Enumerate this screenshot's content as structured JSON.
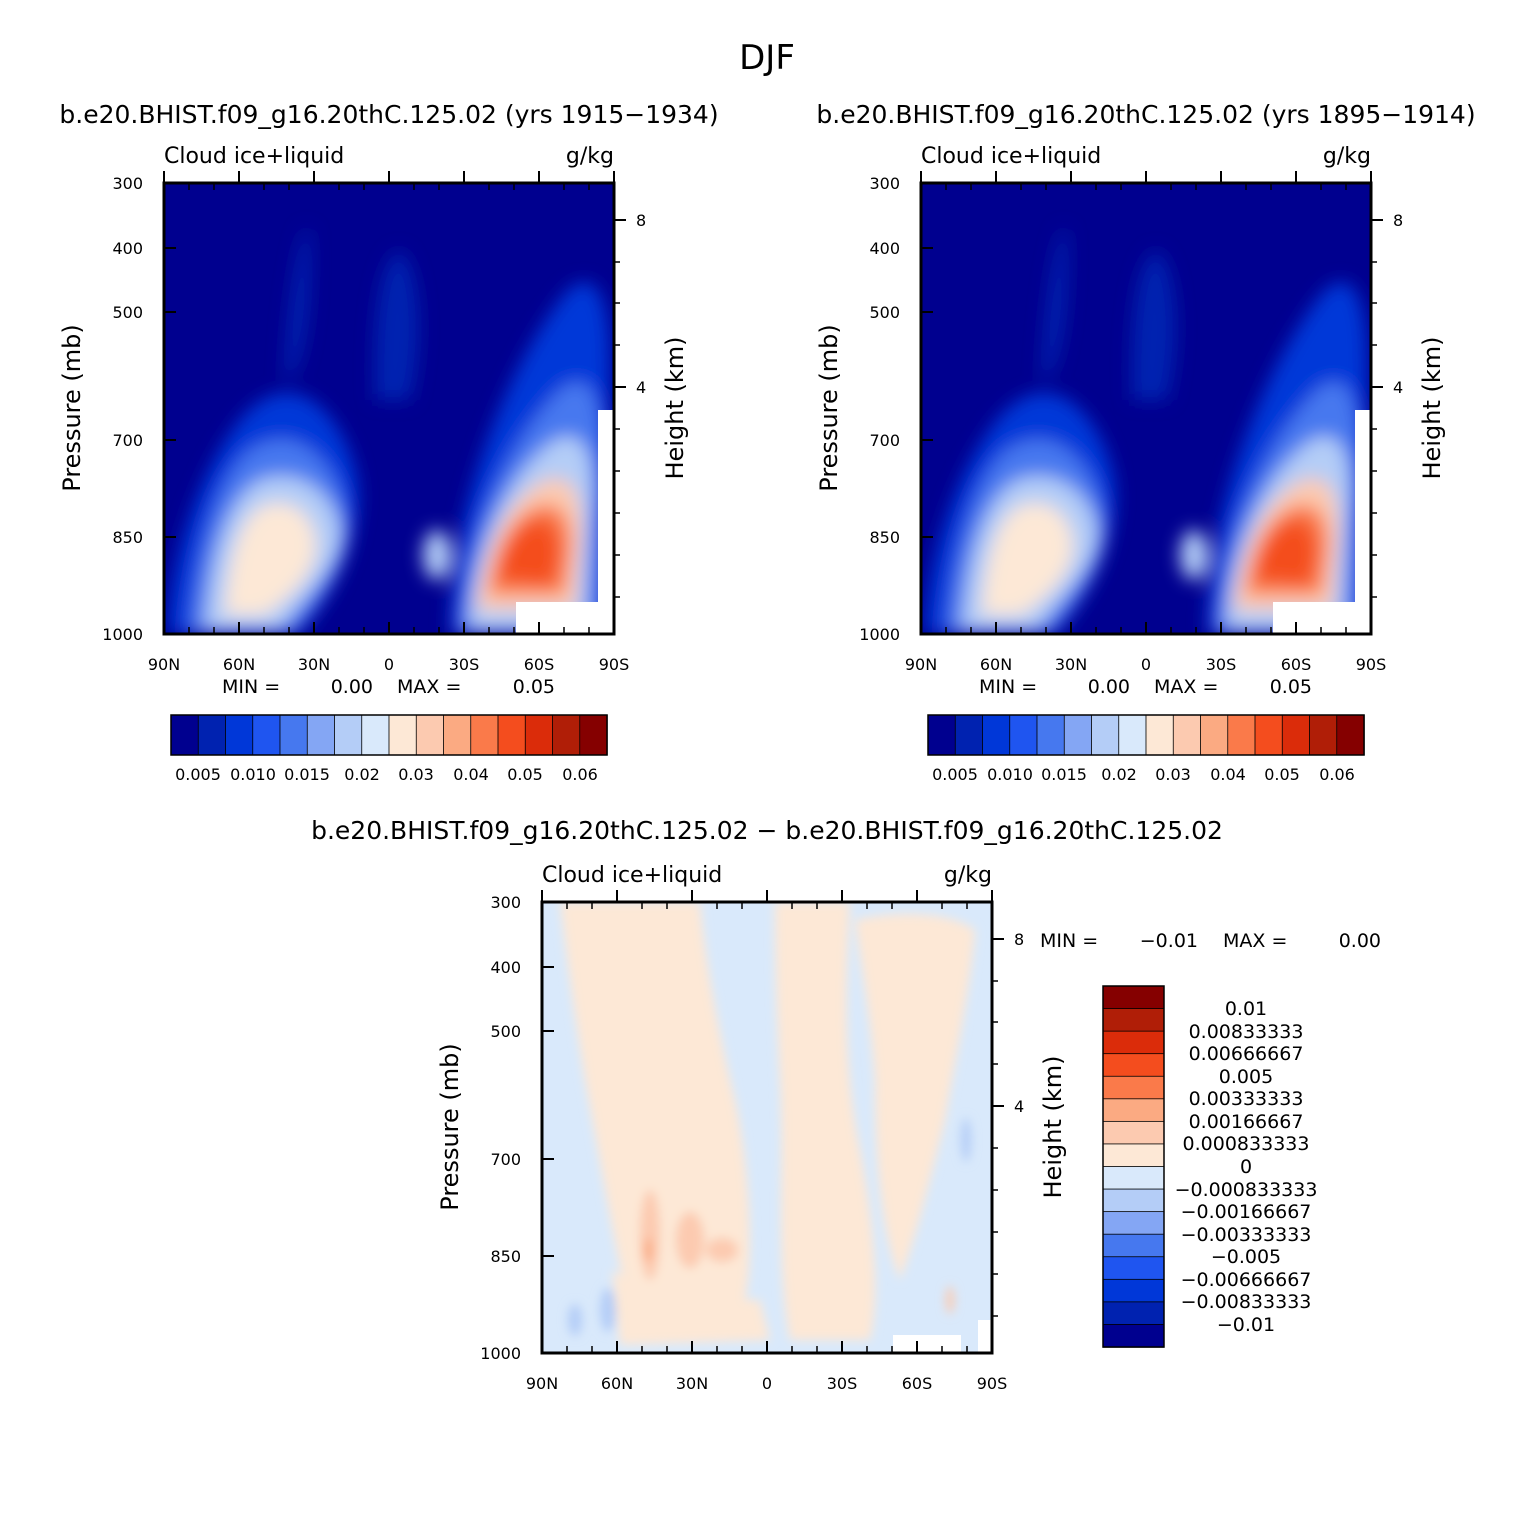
{
  "page_title": "DJF",
  "colors": {
    "abs_levels": [
      "#00008f",
      "#0022b0",
      "#0037d8",
      "#1f55f0",
      "#4678ef",
      "#84a6f4",
      "#b4cdf7",
      "#d9e9fb",
      "#fde8d6",
      "#fccab0",
      "#fbaa82",
      "#fa7a4a",
      "#f44d1e",
      "#db2c0a",
      "#b01e07",
      "#850000"
    ],
    "diff_levels": [
      "#00008f",
      "#0022b0",
      "#0037d8",
      "#1f55f0",
      "#4678ef",
      "#84a6f4",
      "#b4cdf7",
      "#d9e9fb",
      "#fde8d6",
      "#fccab0",
      "#fbaa82",
      "#fa7a4a",
      "#f44d1e",
      "#db2c0a",
      "#b01e07",
      "#850000"
    ]
  },
  "panels": [
    {
      "case_title": "b.e20.BHIST.f09_g16.20thC.125.02 (yrs 1915-1934)",
      "left_string": "Cloud ice+liquid",
      "right_string": "g/kg",
      "y_label": "Pressure (mb)",
      "y2_label": "Height (km)",
      "min_text": "MIN =",
      "min_val": "0.00",
      "max_text": "MAX =",
      "max_val": "0.05",
      "colorbar_labels": [
        "0.005",
        "0.010",
        "0.015",
        "0.02",
        "0.03",
        "0.04",
        "0.05",
        "0.06"
      ]
    },
    {
      "case_title": "b.e20.BHIST.f09_g16.20thC.125.02 (yrs 1895-1914)",
      "left_string": "Cloud ice+liquid",
      "right_string": "g/kg",
      "y_label": "Pressure (mb)",
      "y2_label": "Height (km)",
      "min_text": "MIN =",
      "min_val": "0.00",
      "max_text": "MAX =",
      "max_val": "0.05",
      "colorbar_labels": [
        "0.005",
        "0.010",
        "0.015",
        "0.02",
        "0.03",
        "0.04",
        "0.05",
        "0.06"
      ]
    },
    {
      "case_title": "b.e20.BHIST.f09_g16.20thC.125.02 - b.e20.BHIST.f09_g16.20thC.125.02",
      "left_string": "Cloud ice+liquid",
      "right_string": "g/kg",
      "y_label": "Pressure (mb)",
      "y2_label": "Height (km)",
      "min_text": "MIN =",
      "min_val": "-0.01",
      "max_text": "MAX =",
      "max_val": "0.00",
      "colorbar_labels": [
        "0.01",
        "0.00833333",
        "0.00666667",
        "0.005",
        "0.00333333",
        "0.00166667",
        "0.000833333",
        "0",
        "-0.000833333",
        "-0.00166667",
        "-0.00333333",
        "-0.005",
        "-0.00666667",
        "-0.00833333",
        "-0.01"
      ]
    }
  ],
  "chart_data": [
    {
      "type": "heatmap",
      "title": "b.e20.BHIST.f09_g16.20thC.125.02 (yrs 1915-1934)",
      "variable": "Cloud ice+liquid",
      "units": "g/kg",
      "x_ticks": [
        "90N",
        "60N",
        "30N",
        "0",
        "30S",
        "60S",
        "90S"
      ],
      "y_ticks": [
        "300",
        "400",
        "500",
        "700",
        "850",
        "1000"
      ],
      "y2_ticks": [
        "8",
        "4"
      ],
      "y_log_scale": true,
      "ylim": [
        1000,
        300
      ],
      "xlim": [
        90,
        -90
      ],
      "min": 0.0,
      "max": 0.05,
      "contour_levels": [
        0.005,
        0.01,
        0.015,
        0.02,
        0.03,
        0.04,
        0.05,
        0.06
      ],
      "features": [
        {
          "lat": 62,
          "p": 820,
          "value": 0.03
        },
        {
          "lat": 5,
          "p": 500,
          "value": 0.005
        },
        {
          "lat": -18,
          "p": 850,
          "value": 0.02
        },
        {
          "lat": -55,
          "p": 850,
          "value": 0.05
        }
      ]
    },
    {
      "type": "heatmap",
      "title": "b.e20.BHIST.f09_g16.20thC.125.02 (yrs 1895-1914)",
      "variable": "Cloud ice+liquid",
      "units": "g/kg",
      "x_ticks": [
        "90N",
        "60N",
        "30N",
        "0",
        "30S",
        "60S",
        "90S"
      ],
      "y_ticks": [
        "300",
        "400",
        "500",
        "700",
        "850",
        "1000"
      ],
      "y2_ticks": [
        "8",
        "4"
      ],
      "y_log_scale": true,
      "ylim": [
        1000,
        300
      ],
      "xlim": [
        90,
        -90
      ],
      "min": 0.0,
      "max": 0.05,
      "contour_levels": [
        0.005,
        0.01,
        0.015,
        0.02,
        0.03,
        0.04,
        0.05,
        0.06
      ],
      "features": [
        {
          "lat": 62,
          "p": 820,
          "value": 0.03
        },
        {
          "lat": 5,
          "p": 500,
          "value": 0.005
        },
        {
          "lat": -18,
          "p": 850,
          "value": 0.02
        },
        {
          "lat": -55,
          "p": 850,
          "value": 0.05
        }
      ]
    },
    {
      "type": "heatmap",
      "title": "b.e20.BHIST.f09_g16.20thC.125.02 - b.e20.BHIST.f09_g16.20thC.125.02",
      "variable": "Cloud ice+liquid",
      "units": "g/kg",
      "x_ticks": [
        "90N",
        "60N",
        "30N",
        "0",
        "30S",
        "60S",
        "90S"
      ],
      "y_ticks": [
        "300",
        "400",
        "500",
        "700",
        "850",
        "1000"
      ],
      "y2_ticks": [
        "8",
        "4"
      ],
      "y_log_scale": true,
      "ylim": [
        1000,
        300
      ],
      "xlim": [
        90,
        -90
      ],
      "min": -0.01,
      "max": 0.0,
      "contour_levels": [
        -0.01,
        -0.00833333,
        -0.00666667,
        -0.005,
        -0.00333333,
        -0.00166667,
        -0.000833333,
        0,
        0.000833333,
        0.00166667,
        0.00333333,
        0.005,
        0.00666667,
        0.00833333,
        0.01
      ]
    }
  ]
}
